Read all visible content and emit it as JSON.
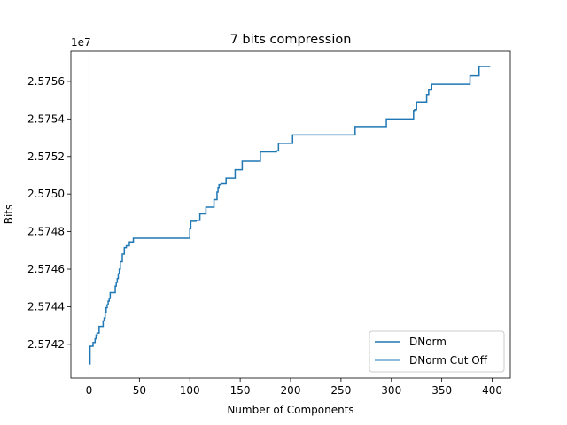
{
  "chart_data": {
    "type": "line",
    "title": "7 bits compression",
    "xlabel": "Number of Components",
    "ylabel": "Bits",
    "offset_text": "1e7",
    "xlim": [
      -18,
      418
    ],
    "ylim": [
      25740.2,
      25757.6
    ],
    "x_ticks": [
      0,
      50,
      100,
      150,
      200,
      250,
      300,
      350,
      400
    ],
    "x_tick_labels": [
      "0",
      "50",
      "100",
      "150",
      "200",
      "250",
      "300",
      "350",
      "400"
    ],
    "y_ticks": [
      25742,
      25744,
      25746,
      25748,
      25750,
      25752,
      25754,
      25756
    ],
    "y_tick_labels": [
      "2.5742",
      "2.5744",
      "2.5746",
      "2.5748",
      "2.5750",
      "2.5752",
      "2.5754",
      "2.5756"
    ],
    "legend_position": "lower right",
    "grid": false,
    "series": [
      {
        "name": "DNorm",
        "color": "#1f77b4",
        "style": "step",
        "x": [
          0,
          1,
          4,
          6,
          7,
          8,
          10,
          14,
          15,
          16,
          17,
          18,
          19,
          20,
          21,
          25,
          26,
          27,
          28,
          29,
          30,
          31,
          33,
          35,
          37,
          40,
          44,
          45,
          99,
          100,
          101,
          106,
          110,
          116,
          118,
          124,
          127,
          128,
          129,
          131,
          136,
          138,
          145,
          152,
          170,
          186,
          188,
          199,
          202,
          262,
          264,
          292,
          295,
          320,
          322,
          323,
          325,
          333,
          335,
          337,
          340,
          376,
          378,
          385,
          387,
          398
        ],
        "y": [
          25740.96,
          25741.9,
          25742.1,
          25742.3,
          25742.5,
          25742.6,
          25742.95,
          25743.25,
          25743.4,
          25743.7,
          25743.95,
          25744.1,
          25744.3,
          25744.45,
          25744.75,
          25744.75,
          25745.1,
          25745.3,
          25745.5,
          25745.75,
          25746.0,
          25746.4,
          25746.8,
          25747.15,
          25747.25,
          25747.45,
          25747.65,
          25747.65,
          25747.65,
          25748.15,
          25748.55,
          25748.6,
          25748.95,
          25749.3,
          25749.3,
          25749.7,
          25750.1,
          25750.35,
          25750.5,
          25750.55,
          25750.85,
          25750.85,
          25751.3,
          25751.75,
          25752.25,
          25752.3,
          25752.7,
          25752.7,
          25753.15,
          25753.15,
          25753.6,
          25753.6,
          25754.0,
          25754.0,
          25754.45,
          25754.5,
          25754.9,
          25754.9,
          25755.3,
          25755.55,
          25755.85,
          25755.85,
          25756.3,
          25756.3,
          25756.8,
          25756.8
        ]
      },
      {
        "name": "DNorm Cut Off",
        "color": "#1f77b4",
        "style": "vline",
        "x": 0
      }
    ]
  }
}
